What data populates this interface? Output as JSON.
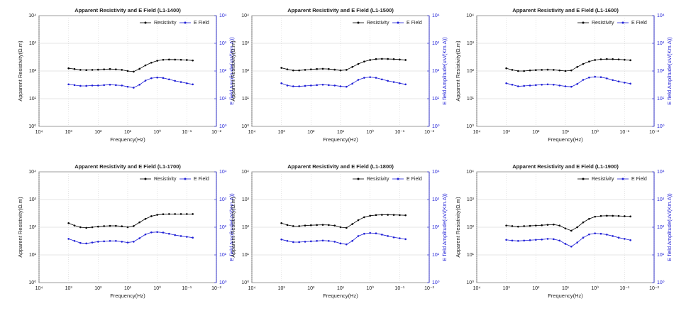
{
  "chart_data": [
    {
      "type": "line",
      "title": "Apparent Resistivity and E Field  (L1-1400)",
      "xlabel": "Frequency(Hz)",
      "ylabel": "Apparent Resistivity(Ω.m)",
      "y2label": "E field Amplitude(uV/(Km.A))",
      "xscale": "log",
      "yscale": "log",
      "y2scale": "log",
      "grid": true,
      "legend": "upper right",
      "x": [
        1000,
        631,
        398,
        251,
        158,
        100,
        63.1,
        39.8,
        25.1,
        15.8,
        10,
        6.31,
        3.98,
        2.51,
        1.58,
        1,
        0.631,
        0.398,
        0.251,
        0.158,
        0.1,
        0.0631
      ],
      "series": [
        {
          "name": "Resistivity",
          "color": "#000000",
          "values": [
            125,
            118,
            110,
            108,
            110,
            112,
            115,
            118,
            115,
            110,
            100,
            95,
            120,
            160,
            200,
            235,
            255,
            260,
            258,
            255,
            250,
            240
          ]
        },
        {
          "name": "E Field",
          "color": "#1f1fd6",
          "axis": "y2",
          "values": [
            33,
            31,
            29,
            29,
            30,
            30,
            31,
            32,
            31,
            30,
            27,
            25,
            32,
            45,
            55,
            58,
            56,
            50,
            44,
            40,
            36,
            33
          ]
        }
      ],
      "xlim": [
        10000,
        0.01
      ],
      "xticks": [
        {
          "value": 10000,
          "label": "10⁴"
        },
        {
          "value": 1000,
          "label": "10³"
        },
        {
          "value": 100,
          "label": "10²"
        },
        {
          "value": 10,
          "label": "10¹"
        },
        {
          "value": 1,
          "label": "10⁰"
        },
        {
          "value": 0.1,
          "label": "10⁻¹"
        },
        {
          "value": 0.01,
          "label": "10⁻²"
        }
      ],
      "ylim": [
        1,
        10000
      ],
      "yticks": [
        {
          "value": 1,
          "label": "10⁰"
        },
        {
          "value": 10,
          "label": "10¹"
        },
        {
          "value": 100,
          "label": "10²"
        },
        {
          "value": 1000,
          "label": "10³"
        },
        {
          "value": 10000,
          "label": "10⁴"
        }
      ],
      "y2lim": [
        1,
        10000
      ],
      "y2ticks": [
        {
          "value": 1,
          "label": "10⁰"
        },
        {
          "value": 10,
          "label": "10¹"
        },
        {
          "value": 100,
          "label": "10²"
        },
        {
          "value": 1000,
          "label": "10³"
        },
        {
          "value": 10000,
          "label": "10⁴"
        }
      ]
    },
    {
      "type": "line",
      "title": "Apparent Resistivity and E Field  (L1-1500)",
      "xlabel": "Frequency(Hz)",
      "ylabel": "Apparent Resistivity(Ω.m)",
      "y2label": "E field Amplitude(uV/(Km.A))",
      "xscale": "log",
      "yscale": "log",
      "y2scale": "log",
      "grid": true,
      "legend": "upper right",
      "x": [
        1000,
        631,
        398,
        251,
        158,
        100,
        63.1,
        39.8,
        25.1,
        15.8,
        10,
        6.31,
        3.98,
        2.51,
        1.58,
        1,
        0.631,
        0.398,
        0.251,
        0.158,
        0.1,
        0.0631
      ],
      "series": [
        {
          "name": "Resistivity",
          "color": "#000000",
          "values": [
            130,
            115,
            105,
            105,
            110,
            115,
            118,
            120,
            118,
            112,
            105,
            110,
            140,
            180,
            220,
            250,
            270,
            275,
            272,
            268,
            260,
            250
          ]
        },
        {
          "name": "E Field",
          "color": "#1f1fd6",
          "axis": "y2",
          "values": [
            36,
            30,
            28,
            28,
            29,
            30,
            31,
            32,
            31,
            30,
            28,
            27,
            35,
            48,
            57,
            60,
            57,
            50,
            44,
            40,
            36,
            33
          ]
        }
      ],
      "xlim": [
        10000,
        0.01
      ],
      "xticks": [
        {
          "value": 10000,
          "label": "10⁴"
        },
        {
          "value": 1000,
          "label": "10³"
        },
        {
          "value": 100,
          "label": "10²"
        },
        {
          "value": 10,
          "label": "10¹"
        },
        {
          "value": 1,
          "label": "10⁰"
        },
        {
          "value": 0.1,
          "label": "10⁻¹"
        },
        {
          "value": 0.01,
          "label": "10⁻²"
        }
      ],
      "ylim": [
        1,
        10000
      ],
      "yticks": [
        {
          "value": 1,
          "label": "10⁰"
        },
        {
          "value": 10,
          "label": "10¹"
        },
        {
          "value": 100,
          "label": "10²"
        },
        {
          "value": 1000,
          "label": "10³"
        },
        {
          "value": 10000,
          "label": "10⁴"
        }
      ],
      "y2lim": [
        1,
        10000
      ],
      "y2ticks": [
        {
          "value": 1,
          "label": "10⁰"
        },
        {
          "value": 10,
          "label": "10¹"
        },
        {
          "value": 100,
          "label": "10²"
        },
        {
          "value": 1000,
          "label": "10³"
        },
        {
          "value": 10000,
          "label": "10⁴"
        }
      ]
    },
    {
      "type": "line",
      "title": "Apparent Resistivity and E Field  (L1-1600)",
      "xlabel": "Frequency(Hz)",
      "ylabel": "Apparent Resistivity(Ω.m)",
      "y2label": "E field Amplitude(uV/(Km.A))",
      "xscale": "log",
      "yscale": "log",
      "y2scale": "log",
      "grid": true,
      "legend": "upper right",
      "x": [
        1000,
        631,
        398,
        251,
        158,
        100,
        63.1,
        39.8,
        25.1,
        15.8,
        10,
        6.31,
        3.98,
        2.51,
        1.58,
        1,
        0.631,
        0.398,
        0.251,
        0.158,
        0.1,
        0.0631
      ],
      "series": [
        {
          "name": "Resistivity",
          "color": "#000000",
          "values": [
            125,
            110,
            100,
            100,
            105,
            108,
            110,
            112,
            110,
            105,
            100,
            105,
            140,
            180,
            220,
            250,
            265,
            270,
            268,
            262,
            255,
            245
          ]
        },
        {
          "name": "E Field",
          "color": "#1f1fd6",
          "axis": "y2",
          "values": [
            36,
            32,
            28,
            29,
            30,
            31,
            32,
            33,
            32,
            30,
            28,
            27,
            34,
            48,
            58,
            62,
            60,
            54,
            47,
            42,
            38,
            35
          ]
        }
      ],
      "xlim": [
        10000,
        0.01
      ],
      "xticks": [
        {
          "value": 10000,
          "label": "10⁴"
        },
        {
          "value": 1000,
          "label": "10³"
        },
        {
          "value": 100,
          "label": "10²"
        },
        {
          "value": 10,
          "label": "10¹"
        },
        {
          "value": 1,
          "label": "10⁰"
        },
        {
          "value": 0.1,
          "label": "10⁻¹"
        },
        {
          "value": 0.01,
          "label": "10⁻²"
        }
      ],
      "ylim": [
        1,
        10000
      ],
      "yticks": [
        {
          "value": 1,
          "label": "10⁰"
        },
        {
          "value": 10,
          "label": "10¹"
        },
        {
          "value": 100,
          "label": "10²"
        },
        {
          "value": 1000,
          "label": "10³"
        },
        {
          "value": 10000,
          "label": "10⁴"
        }
      ],
      "y2lim": [
        1,
        10000
      ],
      "y2ticks": [
        {
          "value": 1,
          "label": "10⁰"
        },
        {
          "value": 10,
          "label": "10¹"
        },
        {
          "value": 100,
          "label": "10²"
        },
        {
          "value": 1000,
          "label": "10³"
        },
        {
          "value": 10000,
          "label": "10⁴"
        }
      ]
    },
    {
      "type": "line",
      "title": "Apparent Resistivity and E Field  (L1-1700)",
      "xlabel": "Frequency(Hz)",
      "ylabel": "Apparent Resistivity(Ω.m)",
      "y2label": "E field Amplitude(uV/(Km.A))",
      "xscale": "log",
      "yscale": "log",
      "y2scale": "log",
      "grid": true,
      "legend": "upper right",
      "x": [
        1000,
        631,
        398,
        251,
        158,
        100,
        63.1,
        39.8,
        25.1,
        15.8,
        10,
        6.31,
        3.98,
        2.51,
        1.58,
        1,
        0.631,
        0.398,
        0.251,
        0.158,
        0.1,
        0.0631
      ],
      "series": [
        {
          "name": "Resistivity",
          "color": "#000000",
          "values": [
            140,
            115,
            100,
            95,
            100,
            105,
            110,
            112,
            112,
            108,
            100,
            110,
            150,
            200,
            250,
            280,
            295,
            300,
            300,
            300,
            300,
            300
          ]
        },
        {
          "name": "E Field",
          "color": "#1f1fd6",
          "axis": "y2",
          "values": [
            38,
            32,
            27,
            26,
            28,
            30,
            31,
            32,
            32,
            30,
            28,
            30,
            40,
            55,
            65,
            67,
            64,
            58,
            52,
            48,
            45,
            42
          ]
        }
      ],
      "xlim": [
        10000,
        0.01
      ],
      "xticks": [
        {
          "value": 10000,
          "label": "10⁴"
        },
        {
          "value": 1000,
          "label": "10³"
        },
        {
          "value": 100,
          "label": "10²"
        },
        {
          "value": 10,
          "label": "10¹"
        },
        {
          "value": 1,
          "label": "10⁰"
        },
        {
          "value": 0.1,
          "label": "10⁻¹"
        },
        {
          "value": 0.01,
          "label": "10⁻²"
        }
      ],
      "ylim": [
        1,
        10000
      ],
      "yticks": [
        {
          "value": 1,
          "label": "10⁰"
        },
        {
          "value": 10,
          "label": "10¹"
        },
        {
          "value": 100,
          "label": "10²"
        },
        {
          "value": 1000,
          "label": "10³"
        },
        {
          "value": 10000,
          "label": "10⁴"
        }
      ],
      "y2lim": [
        1,
        10000
      ],
      "y2ticks": [
        {
          "value": 1,
          "label": "10⁰"
        },
        {
          "value": 10,
          "label": "10¹"
        },
        {
          "value": 100,
          "label": "10²"
        },
        {
          "value": 1000,
          "label": "10³"
        },
        {
          "value": 10000,
          "label": "10⁴"
        }
      ]
    },
    {
      "type": "line",
      "title": "Apparent Resistivity and E Field  (L1-1800)",
      "xlabel": "Frequency(Hz)",
      "ylabel": "Apparent Resistivity(Ω.m)",
      "y2label": "E field Amplitude(uV/(Km.A))",
      "xscale": "log",
      "yscale": "log",
      "y2scale": "log",
      "grid": true,
      "legend": "upper right",
      "x": [
        1000,
        631,
        398,
        251,
        158,
        100,
        63.1,
        39.8,
        25.1,
        15.8,
        10,
        6.31,
        3.98,
        2.51,
        1.58,
        1,
        0.631,
        0.398,
        0.251,
        0.158,
        0.1,
        0.0631
      ],
      "series": [
        {
          "name": "Resistivity",
          "color": "#000000",
          "values": [
            140,
            120,
            110,
            110,
            115,
            118,
            120,
            122,
            120,
            115,
            100,
            95,
            130,
            180,
            230,
            260,
            275,
            280,
            280,
            278,
            275,
            270
          ]
        },
        {
          "name": "E Field",
          "color": "#1f1fd6",
          "axis": "y2",
          "values": [
            36,
            32,
            29,
            29,
            30,
            31,
            32,
            33,
            32,
            30,
            26,
            24,
            32,
            48,
            58,
            62,
            60,
            54,
            48,
            43,
            40,
            37
          ]
        }
      ],
      "xlim": [
        10000,
        0.01
      ],
      "xticks": [
        {
          "value": 10000,
          "label": "10⁴"
        },
        {
          "value": 1000,
          "label": "10³"
        },
        {
          "value": 100,
          "label": "10²"
        },
        {
          "value": 10,
          "label": "10¹"
        },
        {
          "value": 1,
          "label": "10⁰"
        },
        {
          "value": 0.1,
          "label": "10⁻¹"
        },
        {
          "value": 0.01,
          "label": "10⁻²"
        }
      ],
      "ylim": [
        1,
        10000
      ],
      "yticks": [
        {
          "value": 1,
          "label": "10⁰"
        },
        {
          "value": 10,
          "label": "10¹"
        },
        {
          "value": 100,
          "label": "10²"
        },
        {
          "value": 1000,
          "label": "10³"
        },
        {
          "value": 10000,
          "label": "10⁴"
        }
      ],
      "y2lim": [
        1,
        10000
      ],
      "y2ticks": [
        {
          "value": 1,
          "label": "10⁰"
        },
        {
          "value": 10,
          "label": "10¹"
        },
        {
          "value": 100,
          "label": "10²"
        },
        {
          "value": 1000,
          "label": "10³"
        },
        {
          "value": 10000,
          "label": "10⁴"
        }
      ]
    },
    {
      "type": "line",
      "title": "Apparent Resistivity and E Field  (L1-1900)",
      "xlabel": "Frequency(Hz)",
      "ylabel": "Apparent Resistivity(Ω.m)",
      "y2label": "E field Amplitude(uV/(Km.A))",
      "xscale": "log",
      "yscale": "log",
      "y2scale": "log",
      "grid": true,
      "legend": "upper right",
      "x": [
        1000,
        631,
        398,
        251,
        158,
        100,
        63.1,
        39.8,
        25.1,
        15.8,
        10,
        6.31,
        3.98,
        2.51,
        1.58,
        1,
        0.631,
        0.398,
        0.251,
        0.158,
        0.1,
        0.0631
      ],
      "series": [
        {
          "name": "Resistivity",
          "color": "#000000",
          "values": [
            115,
            110,
            105,
            110,
            112,
            115,
            118,
            122,
            125,
            115,
            90,
            75,
            100,
            150,
            200,
            240,
            255,
            260,
            258,
            255,
            250,
            245
          ]
        },
        {
          "name": "E Field",
          "color": "#1f1fd6",
          "axis": "y2",
          "values": [
            35,
            33,
            32,
            33,
            34,
            35,
            36,
            38,
            37,
            33,
            25,
            20,
            28,
            42,
            55,
            60,
            58,
            54,
            48,
            42,
            38,
            34
          ]
        }
      ],
      "xlim": [
        10000,
        0.01
      ],
      "xticks": [
        {
          "value": 10000,
          "label": "10⁴"
        },
        {
          "value": 1000,
          "label": "10³"
        },
        {
          "value": 100,
          "label": "10²"
        },
        {
          "value": 10,
          "label": "10¹"
        },
        {
          "value": 1,
          "label": "10⁰"
        },
        {
          "value": 0.1,
          "label": "10⁻¹"
        },
        {
          "value": 0.01,
          "label": "10⁻²"
        }
      ],
      "ylim": [
        1,
        10000
      ],
      "yticks": [
        {
          "value": 1,
          "label": "10⁰"
        },
        {
          "value": 10,
          "label": "10¹"
        },
        {
          "value": 100,
          "label": "10²"
        },
        {
          "value": 1000,
          "label": "10³"
        },
        {
          "value": 10000,
          "label": "10⁴"
        }
      ],
      "y2lim": [
        1,
        10000
      ],
      "y2ticks": [
        {
          "value": 1,
          "label": "10⁰"
        },
        {
          "value": 10,
          "label": "10¹"
        },
        {
          "value": 100,
          "label": "10²"
        },
        {
          "value": 1000,
          "label": "10³"
        },
        {
          "value": 10000,
          "label": "10⁴"
        }
      ]
    }
  ]
}
